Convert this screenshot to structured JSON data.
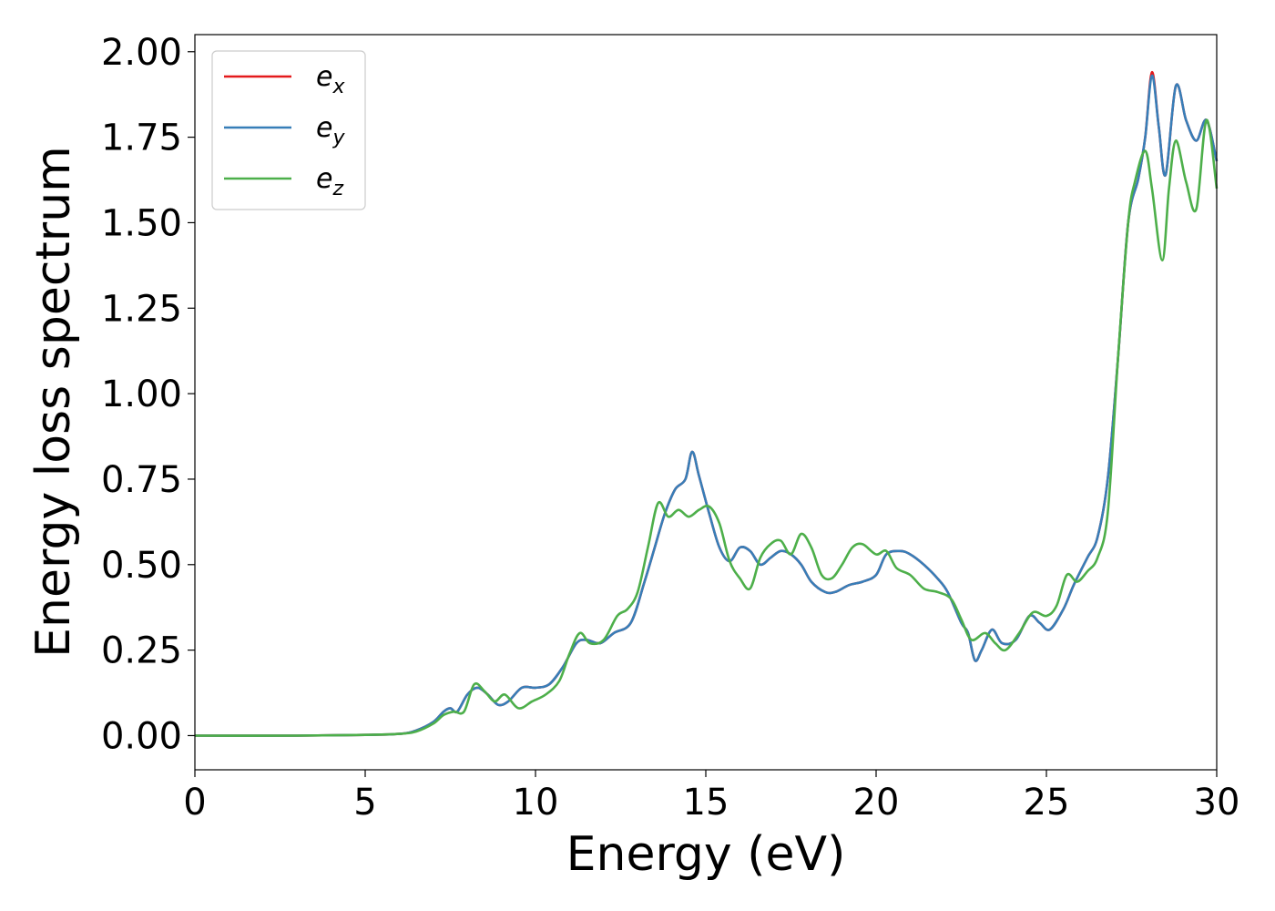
{
  "chart_data": {
    "type": "line",
    "title": "",
    "xlabel": "Energy (eV)",
    "ylabel": "Energy loss spectrum",
    "xlim": [
      0,
      30
    ],
    "ylim": [
      -0.1,
      2.05
    ],
    "xticks": [
      0,
      5,
      10,
      15,
      20,
      25,
      30
    ],
    "yticks": [
      "0.00",
      "0.25",
      "0.50",
      "0.75",
      "1.00",
      "1.25",
      "1.50",
      "1.75",
      "2.00"
    ],
    "ytick_values": [
      0,
      0.25,
      0.5,
      0.75,
      1.0,
      1.25,
      1.5,
      1.75,
      2.0
    ],
    "grid": false,
    "legend_position": "top-left",
    "series": [
      {
        "name": "e_x",
        "label_base": "e",
        "label_sub": "x",
        "color": "#e41a1c",
        "points": [
          [
            0,
            0
          ],
          [
            3,
            0
          ],
          [
            5,
            0.002
          ],
          [
            6,
            0.005
          ],
          [
            6.5,
            0.015
          ],
          [
            7,
            0.04
          ],
          [
            7.3,
            0.07
          ],
          [
            7.5,
            0.08
          ],
          [
            7.7,
            0.07
          ],
          [
            8,
            0.12
          ],
          [
            8.3,
            0.14
          ],
          [
            8.6,
            0.12
          ],
          [
            8.9,
            0.09
          ],
          [
            9.2,
            0.1
          ],
          [
            9.6,
            0.14
          ],
          [
            10,
            0.14
          ],
          [
            10.4,
            0.15
          ],
          [
            10.8,
            0.2
          ],
          [
            11.2,
            0.27
          ],
          [
            11.5,
            0.28
          ],
          [
            11.9,
            0.27
          ],
          [
            12.3,
            0.3
          ],
          [
            12.8,
            0.33
          ],
          [
            13.2,
            0.45
          ],
          [
            13.5,
            0.55
          ],
          [
            13.8,
            0.65
          ],
          [
            14.1,
            0.72
          ],
          [
            14.4,
            0.75
          ],
          [
            14.6,
            0.83
          ],
          [
            14.8,
            0.76
          ],
          [
            15.1,
            0.65
          ],
          [
            15.4,
            0.55
          ],
          [
            15.7,
            0.51
          ],
          [
            16,
            0.55
          ],
          [
            16.3,
            0.54
          ],
          [
            16.6,
            0.5
          ],
          [
            16.9,
            0.52
          ],
          [
            17.2,
            0.54
          ],
          [
            17.5,
            0.53
          ],
          [
            17.8,
            0.5
          ],
          [
            18.1,
            0.45
          ],
          [
            18.5,
            0.42
          ],
          [
            18.8,
            0.42
          ],
          [
            19.2,
            0.44
          ],
          [
            19.6,
            0.45
          ],
          [
            20,
            0.47
          ],
          [
            20.3,
            0.53
          ],
          [
            20.7,
            0.54
          ],
          [
            21,
            0.53
          ],
          [
            21.4,
            0.5
          ],
          [
            21.8,
            0.46
          ],
          [
            22.1,
            0.42
          ],
          [
            22.5,
            0.33
          ],
          [
            22.7,
            0.3
          ],
          [
            22.9,
            0.22
          ],
          [
            23.1,
            0.25
          ],
          [
            23.4,
            0.31
          ],
          [
            23.7,
            0.27
          ],
          [
            24.1,
            0.28
          ],
          [
            24.5,
            0.35
          ],
          [
            24.8,
            0.33
          ],
          [
            25.1,
            0.31
          ],
          [
            25.5,
            0.37
          ],
          [
            25.8,
            0.44
          ],
          [
            26.2,
            0.52
          ],
          [
            26.5,
            0.58
          ],
          [
            26.8,
            0.75
          ],
          [
            27.1,
            1.1
          ],
          [
            27.4,
            1.5
          ],
          [
            27.7,
            1.63
          ],
          [
            27.9,
            1.75
          ],
          [
            28.1,
            1.94
          ],
          [
            28.3,
            1.78
          ],
          [
            28.5,
            1.64
          ],
          [
            28.8,
            1.9
          ],
          [
            29.1,
            1.8
          ],
          [
            29.4,
            1.74
          ],
          [
            29.7,
            1.8
          ],
          [
            30,
            1.68
          ]
        ]
      },
      {
        "name": "e_y",
        "label_base": "e",
        "label_sub": "y",
        "color": "#377eb8",
        "points": [
          [
            0,
            0
          ],
          [
            3,
            0
          ],
          [
            5,
            0.002
          ],
          [
            6,
            0.005
          ],
          [
            6.5,
            0.015
          ],
          [
            7,
            0.04
          ],
          [
            7.3,
            0.07
          ],
          [
            7.5,
            0.08
          ],
          [
            7.7,
            0.07
          ],
          [
            8,
            0.12
          ],
          [
            8.3,
            0.14
          ],
          [
            8.6,
            0.12
          ],
          [
            8.9,
            0.09
          ],
          [
            9.2,
            0.1
          ],
          [
            9.6,
            0.14
          ],
          [
            10,
            0.14
          ],
          [
            10.4,
            0.15
          ],
          [
            10.8,
            0.2
          ],
          [
            11.2,
            0.27
          ],
          [
            11.5,
            0.28
          ],
          [
            11.9,
            0.27
          ],
          [
            12.3,
            0.3
          ],
          [
            12.8,
            0.33
          ],
          [
            13.2,
            0.45
          ],
          [
            13.5,
            0.55
          ],
          [
            13.8,
            0.65
          ],
          [
            14.1,
            0.72
          ],
          [
            14.4,
            0.75
          ],
          [
            14.6,
            0.83
          ],
          [
            14.8,
            0.76
          ],
          [
            15.1,
            0.65
          ],
          [
            15.4,
            0.55
          ],
          [
            15.7,
            0.51
          ],
          [
            16,
            0.55
          ],
          [
            16.3,
            0.54
          ],
          [
            16.6,
            0.5
          ],
          [
            16.9,
            0.52
          ],
          [
            17.2,
            0.54
          ],
          [
            17.5,
            0.53
          ],
          [
            17.8,
            0.5
          ],
          [
            18.1,
            0.45
          ],
          [
            18.5,
            0.42
          ],
          [
            18.8,
            0.42
          ],
          [
            19.2,
            0.44
          ],
          [
            19.6,
            0.45
          ],
          [
            20,
            0.47
          ],
          [
            20.3,
            0.53
          ],
          [
            20.7,
            0.54
          ],
          [
            21,
            0.53
          ],
          [
            21.4,
            0.5
          ],
          [
            21.8,
            0.46
          ],
          [
            22.1,
            0.42
          ],
          [
            22.5,
            0.33
          ],
          [
            22.7,
            0.3
          ],
          [
            22.9,
            0.22
          ],
          [
            23.1,
            0.25
          ],
          [
            23.4,
            0.31
          ],
          [
            23.7,
            0.27
          ],
          [
            24.1,
            0.28
          ],
          [
            24.5,
            0.35
          ],
          [
            24.8,
            0.33
          ],
          [
            25.1,
            0.31
          ],
          [
            25.5,
            0.37
          ],
          [
            25.8,
            0.44
          ],
          [
            26.2,
            0.52
          ],
          [
            26.5,
            0.58
          ],
          [
            26.8,
            0.75
          ],
          [
            27.1,
            1.1
          ],
          [
            27.4,
            1.5
          ],
          [
            27.7,
            1.63
          ],
          [
            27.9,
            1.75
          ],
          [
            28.1,
            1.93
          ],
          [
            28.3,
            1.78
          ],
          [
            28.5,
            1.64
          ],
          [
            28.8,
            1.9
          ],
          [
            29.1,
            1.8
          ],
          [
            29.4,
            1.74
          ],
          [
            29.7,
            1.8
          ],
          [
            30,
            1.68
          ]
        ]
      },
      {
        "name": "e_z",
        "label_base": "e",
        "label_sub": "z",
        "color": "#4daf4a",
        "points": [
          [
            0,
            0
          ],
          [
            3,
            0
          ],
          [
            5,
            0.002
          ],
          [
            6,
            0.005
          ],
          [
            6.5,
            0.012
          ],
          [
            7,
            0.035
          ],
          [
            7.3,
            0.06
          ],
          [
            7.6,
            0.07
          ],
          [
            7.9,
            0.07
          ],
          [
            8.2,
            0.15
          ],
          [
            8.5,
            0.13
          ],
          [
            8.8,
            0.1
          ],
          [
            9.1,
            0.12
          ],
          [
            9.5,
            0.08
          ],
          [
            9.9,
            0.1
          ],
          [
            10.3,
            0.12
          ],
          [
            10.7,
            0.16
          ],
          [
            11,
            0.24
          ],
          [
            11.3,
            0.3
          ],
          [
            11.6,
            0.27
          ],
          [
            12,
            0.28
          ],
          [
            12.4,
            0.35
          ],
          [
            12.7,
            0.37
          ],
          [
            13,
            0.42
          ],
          [
            13.3,
            0.55
          ],
          [
            13.6,
            0.68
          ],
          [
            13.9,
            0.64
          ],
          [
            14.2,
            0.66
          ],
          [
            14.5,
            0.64
          ],
          [
            14.8,
            0.66
          ],
          [
            15.1,
            0.67
          ],
          [
            15.4,
            0.62
          ],
          [
            15.7,
            0.51
          ],
          [
            16,
            0.46
          ],
          [
            16.3,
            0.43
          ],
          [
            16.6,
            0.52
          ],
          [
            16.9,
            0.56
          ],
          [
            17.2,
            0.57
          ],
          [
            17.5,
            0.53
          ],
          [
            17.8,
            0.59
          ],
          [
            18.1,
            0.55
          ],
          [
            18.4,
            0.47
          ],
          [
            18.7,
            0.46
          ],
          [
            19,
            0.5
          ],
          [
            19.3,
            0.55
          ],
          [
            19.6,
            0.56
          ],
          [
            20,
            0.53
          ],
          [
            20.3,
            0.54
          ],
          [
            20.6,
            0.49
          ],
          [
            21,
            0.47
          ],
          [
            21.4,
            0.43
          ],
          [
            21.8,
            0.42
          ],
          [
            22.2,
            0.4
          ],
          [
            22.5,
            0.34
          ],
          [
            22.8,
            0.28
          ],
          [
            23.2,
            0.3
          ],
          [
            23.5,
            0.27
          ],
          [
            23.8,
            0.25
          ],
          [
            24.2,
            0.3
          ],
          [
            24.6,
            0.36
          ],
          [
            25,
            0.35
          ],
          [
            25.3,
            0.38
          ],
          [
            25.6,
            0.47
          ],
          [
            25.9,
            0.45
          ],
          [
            26.2,
            0.48
          ],
          [
            26.5,
            0.52
          ],
          [
            26.8,
            0.65
          ],
          [
            27.1,
            1.1
          ],
          [
            27.4,
            1.5
          ],
          [
            27.6,
            1.62
          ],
          [
            27.9,
            1.71
          ],
          [
            28.1,
            1.6
          ],
          [
            28.4,
            1.39
          ],
          [
            28.6,
            1.6
          ],
          [
            28.8,
            1.74
          ],
          [
            29.1,
            1.62
          ],
          [
            29.4,
            1.54
          ],
          [
            29.7,
            1.8
          ],
          [
            30,
            1.6
          ]
        ]
      }
    ]
  }
}
